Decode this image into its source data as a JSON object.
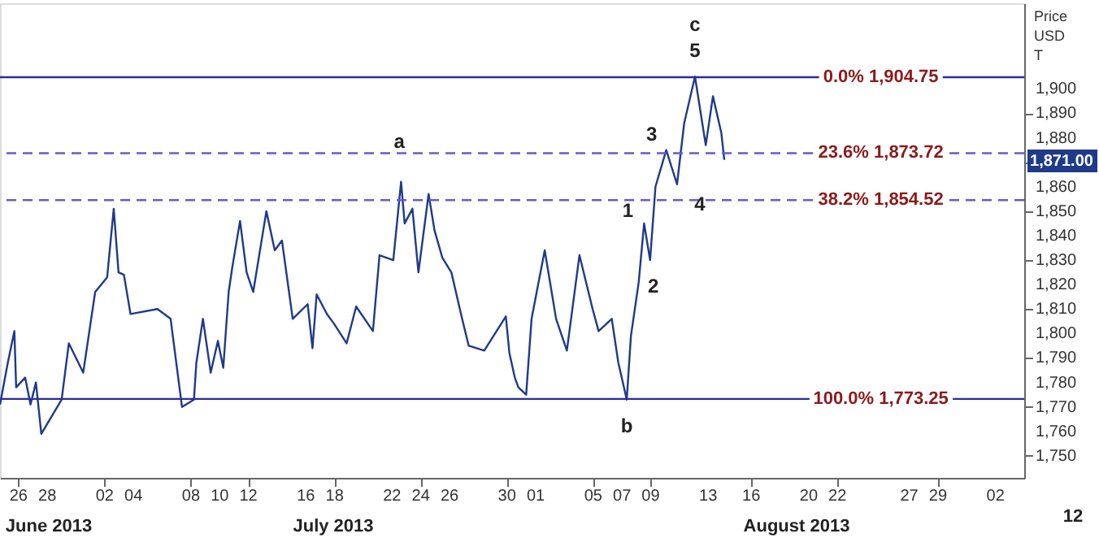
{
  "chart_data": {
    "type": "line",
    "ylabel": "Price USD T",
    "x": [
      "2013-06-24T17:00",
      "2013-06-25T06:00",
      "2013-06-25T17:00",
      "2013-06-25T20:00",
      "2013-06-26T11:00",
      "2013-06-26T20:00",
      "2013-06-27T05:00",
      "2013-06-27T14:00",
      "2013-06-29T00:00",
      "2013-06-29T12:00",
      "2013-06-30T12:00",
      "2013-07-01T08:00",
      "2013-07-02T04:00",
      "2013-07-02T15:00",
      "2013-07-02T23:00",
      "2013-07-03T08:00",
      "2013-07-03T19:00",
      "2013-07-05T16:00",
      "2013-07-06T14:00",
      "2013-07-07T09:00",
      "2013-07-08T05:00",
      "2013-07-08T09:00",
      "2013-07-08T20:00",
      "2013-07-09T09:00",
      "2013-07-09T21:00",
      "2013-07-10T06:00",
      "2013-07-10T15:00",
      "2013-07-10T21:00",
      "2013-07-11T10:00",
      "2013-07-11T21:00",
      "2013-07-12T08:00",
      "2013-07-13T06:00",
      "2013-07-13T20:00",
      "2013-07-14T08:00",
      "2013-07-15T02:00",
      "2013-07-16T03:00",
      "2013-07-16T11:00",
      "2013-07-16T18:00",
      "2013-07-17T11:00",
      "2013-07-17T23:00",
      "2013-07-18T20:00",
      "2013-07-19T12:00",
      "2013-07-20T16:00",
      "2013-07-21T03:00",
      "2013-07-22T02:00",
      "2013-07-22T15:00",
      "2013-07-22T21:00",
      "2013-07-23T10:00",
      "2013-07-23T20:00",
      "2013-07-24T13:00",
      "2013-07-24T23:00",
      "2013-07-25T12:00",
      "2013-07-26T03:00",
      "2013-07-26T21:00",
      "2013-07-27T08:00",
      "2013-07-28T10:00",
      "2013-07-29T22:00",
      "2013-07-30T04:00",
      "2013-07-30T13:00",
      "2013-07-30T19:00",
      "2013-07-31T08:00",
      "2013-07-31T17:00",
      "2013-08-01T15:00",
      "2013-08-02T10:00",
      "2013-08-03T04:00",
      "2013-08-04T01:00",
      "2013-08-04T23:00",
      "2013-08-05T09:00",
      "2013-08-06T07:00",
      "2013-08-06T18:00",
      "2013-08-07T08:00",
      "2013-08-07T15:00",
      "2013-08-08T04:00",
      "2013-08-08T13:00",
      "2013-08-08T23:00",
      "2013-08-09T08:00",
      "2013-08-10T02:00",
      "2013-08-10T20:00",
      "2013-08-11T08:00",
      "2013-08-12T02:00",
      "2013-08-12T20:00",
      "2013-08-13T08:00",
      "2013-08-13T22:00",
      "2013-08-14T03:00"
    ],
    "values": [
      1771,
      1788,
      1801,
      1778,
      1782,
      1771,
      1780,
      1759,
      1773,
      1796,
      1784,
      1817,
      1823,
      1851,
      1825,
      1824,
      1808,
      1810,
      1806,
      1770,
      1773,
      1788,
      1806,
      1784,
      1797,
      1786,
      1817,
      1827,
      1846,
      1825,
      1817,
      1850,
      1834,
      1838,
      1806,
      1812,
      1794,
      1816,
      1808,
      1804,
      1796,
      1811,
      1801,
      1832,
      1830,
      1862,
      1845,
      1851,
      1825,
      1857,
      1842,
      1831,
      1825,
      1806,
      1795,
      1793,
      1807,
      1792,
      1782,
      1778,
      1775,
      1806,
      1834,
      1806,
      1793,
      1832,
      1810,
      1801,
      1806,
      1788,
      1773,
      1799,
      1821,
      1845,
      1830,
      1860,
      1875,
      1861,
      1886,
      1905,
      1877,
      1897,
      1882,
      1871
    ],
    "color": "#1f3a8a",
    "xlim": [
      "2013-06-24T17:00",
      "2013-09-04"
    ],
    "xticks": [
      {
        "value": "2013-06-26",
        "label": "26"
      },
      {
        "value": "2013-06-28",
        "label": "28"
      },
      {
        "value": "2013-07-02",
        "label": "02"
      },
      {
        "value": "2013-07-04",
        "label": "04"
      },
      {
        "value": "2013-07-08",
        "label": "08"
      },
      {
        "value": "2013-07-10",
        "label": "10"
      },
      {
        "value": "2013-07-12",
        "label": "12"
      },
      {
        "value": "2013-07-16",
        "label": "16"
      },
      {
        "value": "2013-07-18",
        "label": "18"
      },
      {
        "value": "2013-07-22",
        "label": "22"
      },
      {
        "value": "2013-07-24",
        "label": "24"
      },
      {
        "value": "2013-07-26",
        "label": "26"
      },
      {
        "value": "2013-07-30",
        "label": "30"
      },
      {
        "value": "2013-08-01",
        "label": "01"
      },
      {
        "value": "2013-08-05",
        "label": "05"
      },
      {
        "value": "2013-08-07",
        "label": "07"
      },
      {
        "value": "2013-08-09",
        "label": "09"
      },
      {
        "value": "2013-08-13",
        "label": "13"
      },
      {
        "value": "2013-08-16",
        "label": "16"
      },
      {
        "value": "2013-08-20",
        "label": "20"
      },
      {
        "value": "2013-08-22",
        "label": "22"
      },
      {
        "value": "2013-08-27",
        "label": "27"
      },
      {
        "value": "2013-08-29",
        "label": "29"
      },
      {
        "value": "2013-09-02",
        "label": "02"
      }
    ],
    "ylim": [
      1741,
      1935
    ],
    "yticks": [
      {
        "value": 1750,
        "label": "1,750"
      },
      {
        "value": 1760,
        "label": "1,760"
      },
      {
        "value": 1770,
        "label": "1,770"
      },
      {
        "value": 1780,
        "label": "1,780"
      },
      {
        "value": 1790,
        "label": "1,790"
      },
      {
        "value": 1800,
        "label": "1,800"
      },
      {
        "value": 1810,
        "label": "1,810"
      },
      {
        "value": 1820,
        "label": "1,820"
      },
      {
        "value": 1830,
        "label": "1,830"
      },
      {
        "value": 1840,
        "label": "1,840"
      },
      {
        "value": 1850,
        "label": "1,850"
      },
      {
        "value": 1860,
        "label": "1,860"
      },
      {
        "value": 1870,
        "label": null
      },
      {
        "value": 1880,
        "label": "1,880"
      },
      {
        "value": 1890,
        "label": "1,890"
      },
      {
        "value": 1900,
        "label": "1,900"
      }
    ],
    "grid": false,
    "ref_lines": [
      {
        "axis": "y",
        "value": 1904.75,
        "label": "0.0%  1,904.75",
        "color": "#2b2b9e",
        "line_style": "solid"
      },
      {
        "axis": "y",
        "value": 1873.72,
        "label": "23.6%  1,873.72",
        "color": "#6a5acd",
        "line_style": "dashed"
      },
      {
        "axis": "y",
        "value": 1854.52,
        "label": "38.2%  1,854.52",
        "color": "#6a5acd",
        "line_style": "dashed"
      },
      {
        "axis": "y",
        "value": 1773.25,
        "label": "100.0%  1,773.25",
        "color": "#2b2b9e",
        "line_style": "solid"
      }
    ],
    "annotations": [
      {
        "text": "a",
        "x": "2013-07-22T12:00",
        "y": 1872
      },
      "b",
      "c",
      "5",
      "3",
      "4",
      "1",
      "2",
      "1,871.00",
      "June 2013",
      "July 2013",
      "August 2013",
      "12"
    ]
  }
}
